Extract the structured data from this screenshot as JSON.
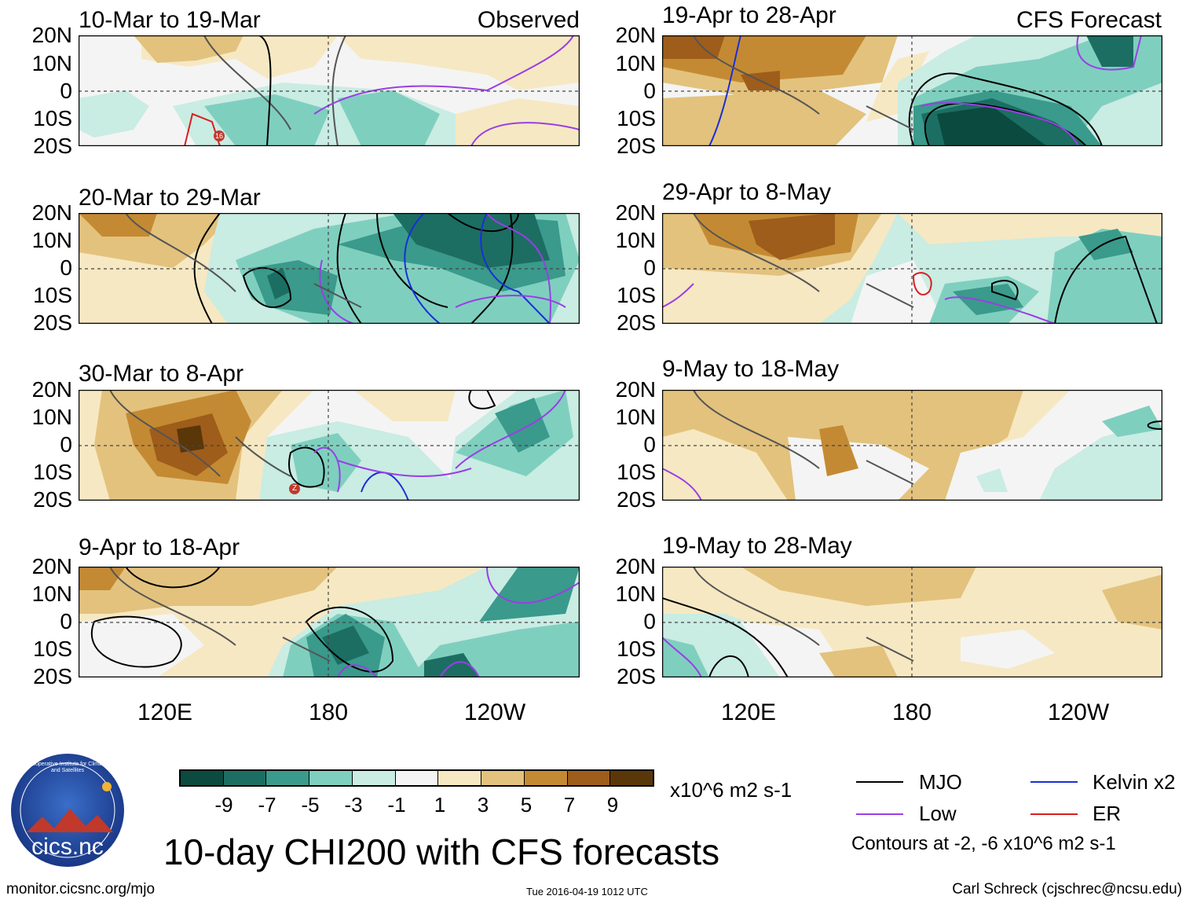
{
  "colors": {
    "neg9": "#0b4a3f",
    "neg7": "#1c6e62",
    "neg5": "#3a9a8b",
    "neg3": "#7fcfbf",
    "neg1": "#c9ece3",
    "zero": "#f4f4f4",
    "pos1": "#f6e8c2",
    "pos3": "#e3c27d",
    "pos5": "#c48a33",
    "pos7": "#9e5d1a",
    "pos9": "#5a3709",
    "mjo": "#000000",
    "kelvin": "#1a2fd8",
    "low": "#9a3ee6",
    "er": "#d81e1e",
    "coast": "#555555"
  },
  "lat_labels": [
    "20N",
    "10N",
    "0",
    "10S",
    "20S"
  ],
  "lon_labels": [
    "120E",
    "180",
    "120W"
  ],
  "panels": [
    {
      "title": "10-Mar to 19-Mar",
      "label": "Observed",
      "marker": "16"
    },
    {
      "title": "19-Apr to 28-Apr",
      "label": "CFS Forecast",
      "marker": ""
    },
    {
      "title": "20-Mar to 29-Mar",
      "label": "",
      "marker": ""
    },
    {
      "title": "29-Apr to 8-May",
      "label": "",
      "marker": ""
    },
    {
      "title": "30-Mar to 8-Apr",
      "label": "",
      "marker": "Z"
    },
    {
      "title": "9-May to 18-May",
      "label": "",
      "marker": ""
    },
    {
      "title": "9-Apr to 18-Apr",
      "label": "",
      "marker": ""
    },
    {
      "title": "19-May to 28-May",
      "label": "",
      "marker": ""
    }
  ],
  "colorbar": {
    "labels": [
      "-9",
      "-7",
      "-5",
      "-3",
      "-1",
      "1",
      "3",
      "5",
      "7",
      "9"
    ],
    "units": "x10^6 m2 s-1"
  },
  "legend": {
    "mjo": "MJO",
    "kelvin": "Kelvin x2",
    "low": "Low",
    "er": "ER",
    "contours": "Contours at -2, -6 x10^6 m2 s-1"
  },
  "footer": {
    "main_title": "10-day CHI200 with CFS forecasts",
    "url": "monitor.cicsnc.org/mjo",
    "timestamp": "Tue 2016-04-19 1012 UTC",
    "author": "Carl Schreck (cjschrec@ncsu.edu)",
    "logo_text": "cics.nc",
    "logo_ring": "Cooperative Institute for Climate and Satellites"
  }
}
